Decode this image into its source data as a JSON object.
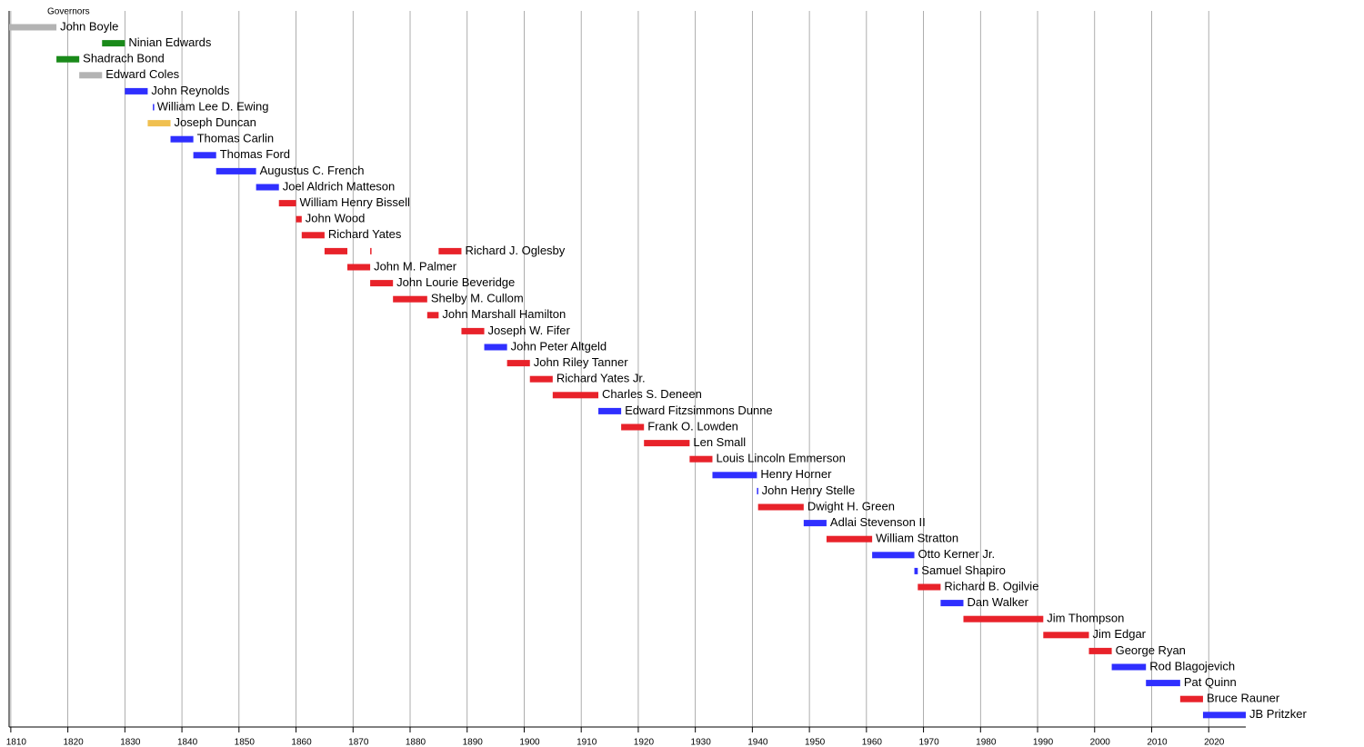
{
  "chart_data": {
    "type": "timeline",
    "title": "Governors",
    "xlim": [
      1809.7,
      2026.5
    ],
    "xticks": [
      1810,
      1820,
      1830,
      1840,
      1850,
      1860,
      1870,
      1880,
      1890,
      1900,
      1910,
      1920,
      1930,
      1940,
      1950,
      1960,
      1970,
      1980,
      1990,
      2000,
      2010,
      2020
    ],
    "grid": true,
    "series": [
      {
        "name": "John Boyle",
        "color": "#b3b3b3",
        "values": [
          [
            1809.7,
            1818
          ]
        ]
      },
      {
        "name": "Ninian Edwards",
        "color": "#1a8a1a",
        "values": [
          [
            1826,
            1830
          ]
        ]
      },
      {
        "name": "Shadrach Bond",
        "color": "#1a8a1a",
        "values": [
          [
            1818,
            1822
          ]
        ]
      },
      {
        "name": "Edward Coles",
        "color": "#b3b3b3",
        "values": [
          [
            1822,
            1826
          ]
        ]
      },
      {
        "name": "John Reynolds",
        "color": "#2f2fff",
        "values": [
          [
            1830,
            1834
          ]
        ]
      },
      {
        "name": "William Lee D. Ewing",
        "color": "#2f2fff",
        "values": [
          [
            1834.9,
            1835
          ]
        ]
      },
      {
        "name": "Joseph Duncan",
        "color": "#f0c050",
        "values": [
          [
            1834,
            1838
          ]
        ]
      },
      {
        "name": "Thomas Carlin",
        "color": "#2f2fff",
        "values": [
          [
            1838,
            1842
          ]
        ]
      },
      {
        "name": "Thomas Ford",
        "color": "#2f2fff",
        "values": [
          [
            1842,
            1846
          ]
        ]
      },
      {
        "name": "Augustus C. French",
        "color": "#2f2fff",
        "values": [
          [
            1846,
            1853
          ]
        ]
      },
      {
        "name": "Joel Aldrich Matteson",
        "color": "#2f2fff",
        "values": [
          [
            1853,
            1857
          ]
        ]
      },
      {
        "name": "William Henry Bissell",
        "color": "#e8222a",
        "values": [
          [
            1857,
            1860
          ]
        ]
      },
      {
        "name": "John Wood",
        "color": "#e8222a",
        "values": [
          [
            1860,
            1861
          ]
        ]
      },
      {
        "name": "Richard Yates",
        "color": "#e8222a",
        "values": [
          [
            1861,
            1865
          ]
        ]
      },
      {
        "name": "Richard J. Oglesby",
        "color": "#e8222a",
        "values": [
          [
            1865,
            1869
          ],
          [
            1873,
            1873.1
          ],
          [
            1885,
            1889
          ]
        ]
      },
      {
        "name": "John M. Palmer",
        "color": "#e8222a",
        "values": [
          [
            1869,
            1873
          ]
        ]
      },
      {
        "name": "John Lourie Beveridge",
        "color": "#e8222a",
        "values": [
          [
            1873,
            1877
          ]
        ]
      },
      {
        "name": "Shelby M. Cullom",
        "color": "#e8222a",
        "values": [
          [
            1877,
            1883
          ]
        ]
      },
      {
        "name": "John Marshall Hamilton",
        "color": "#e8222a",
        "values": [
          [
            1883,
            1885
          ]
        ]
      },
      {
        "name": "Joseph W. Fifer",
        "color": "#e8222a",
        "values": [
          [
            1889,
            1893
          ]
        ]
      },
      {
        "name": "John Peter Altgeld",
        "color": "#2f2fff",
        "values": [
          [
            1893,
            1897
          ]
        ]
      },
      {
        "name": "John Riley Tanner",
        "color": "#e8222a",
        "values": [
          [
            1897,
            1901
          ]
        ]
      },
      {
        "name": "Richard Yates Jr.",
        "color": "#e8222a",
        "values": [
          [
            1901,
            1905
          ]
        ]
      },
      {
        "name": "Charles S. Deneen",
        "color": "#e8222a",
        "values": [
          [
            1905,
            1913
          ]
        ]
      },
      {
        "name": "Edward Fitzsimmons Dunne",
        "color": "#2f2fff",
        "values": [
          [
            1913,
            1917
          ]
        ]
      },
      {
        "name": "Frank O. Lowden",
        "color": "#e8222a",
        "values": [
          [
            1917,
            1921
          ]
        ]
      },
      {
        "name": "Len Small",
        "color": "#e8222a",
        "values": [
          [
            1921,
            1929
          ]
        ]
      },
      {
        "name": "Louis Lincoln Emmerson",
        "color": "#e8222a",
        "values": [
          [
            1929,
            1933
          ]
        ]
      },
      {
        "name": "Henry Horner",
        "color": "#2f2fff",
        "values": [
          [
            1933,
            1940.8
          ]
        ]
      },
      {
        "name": "John Henry Stelle",
        "color": "#2f2fff",
        "values": [
          [
            1940.8,
            1941
          ]
        ]
      },
      {
        "name": "Dwight H. Green",
        "color": "#e8222a",
        "values": [
          [
            1941,
            1949
          ]
        ]
      },
      {
        "name": "Adlai Stevenson II",
        "color": "#2f2fff",
        "values": [
          [
            1949,
            1953
          ]
        ]
      },
      {
        "name": "William Stratton",
        "color": "#e8222a",
        "values": [
          [
            1953,
            1961
          ]
        ]
      },
      {
        "name": "Otto Kerner Jr.",
        "color": "#2f2fff",
        "values": [
          [
            1961,
            1968.4
          ]
        ]
      },
      {
        "name": "Samuel Shapiro",
        "color": "#2f2fff",
        "values": [
          [
            1968.4,
            1969
          ]
        ]
      },
      {
        "name": "Richard B. Ogilvie",
        "color": "#e8222a",
        "values": [
          [
            1969,
            1973
          ]
        ]
      },
      {
        "name": "Dan Walker",
        "color": "#2f2fff",
        "values": [
          [
            1973,
            1977
          ]
        ]
      },
      {
        "name": "Jim Thompson",
        "color": "#e8222a",
        "values": [
          [
            1977,
            1991
          ]
        ]
      },
      {
        "name": "Jim Edgar",
        "color": "#e8222a",
        "values": [
          [
            1991,
            1999
          ]
        ]
      },
      {
        "name": "George Ryan",
        "color": "#e8222a",
        "values": [
          [
            1999,
            2003
          ]
        ]
      },
      {
        "name": "Rod Blagojevich",
        "color": "#2f2fff",
        "values": [
          [
            2003,
            2009
          ]
        ]
      },
      {
        "name": "Pat Quinn",
        "color": "#2f2fff",
        "values": [
          [
            2009,
            2015
          ]
        ]
      },
      {
        "name": "Bruce Rauner",
        "color": "#e8222a",
        "values": [
          [
            2015,
            2019
          ]
        ]
      },
      {
        "name": "JB Pritzker",
        "color": "#2f2fff",
        "values": [
          [
            2019,
            2026.5
          ]
        ]
      }
    ]
  }
}
